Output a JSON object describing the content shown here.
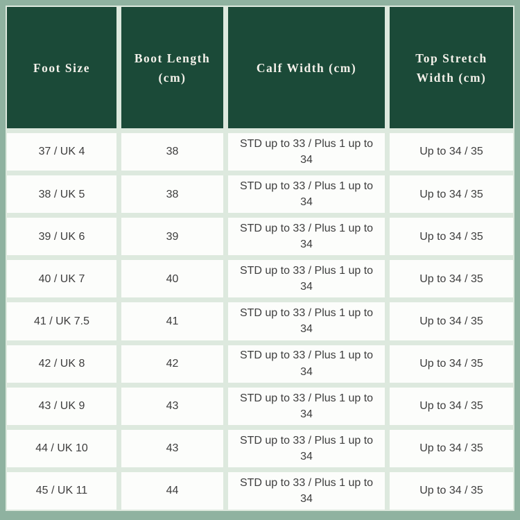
{
  "page": {
    "description": "Boot sizing chart table",
    "colors": {
      "page_background": "#8fb2a0",
      "header_background": "#1b4a38",
      "header_text": "#f4f1ea",
      "grid_line": "#dde9de",
      "cell_background": "#fcfdfb",
      "body_text": "#3d3d3d"
    }
  },
  "chart_data": {
    "type": "table",
    "title": "",
    "columns": [
      "Foot Size",
      "Boot Length (cm)",
      "Calf Width (cm)",
      "Top Stretch Width (cm)"
    ],
    "rows": [
      [
        "37 / UK 4",
        "38",
        "STD up to 33 / Plus 1 up to 34",
        "Up to 34 / 35"
      ],
      [
        "38 / UK 5",
        "38",
        "STD up to 33 / Plus 1 up to 34",
        "Up to 34 / 35"
      ],
      [
        "39 / UK 6",
        "39",
        "STD up to 33 / Plus 1 up to 34",
        "Up to 34 / 35"
      ],
      [
        "40 / UK 7",
        "40",
        "STD up to 33 / Plus 1 up to 34",
        "Up to 34 / 35"
      ],
      [
        "41 / UK 7.5",
        "41",
        "STD up to 33 / Plus 1 up to 34",
        "Up to 34 / 35"
      ],
      [
        "42 / UK 8",
        "42",
        "STD up to 33 / Plus 1 up to 34",
        "Up to 34 / 35"
      ],
      [
        "43 / UK 9",
        "43",
        "STD up to 33 / Plus 1 up to 34",
        "Up to 34 / 35"
      ],
      [
        "44 / UK 10",
        "43",
        "STD up to 33 / Plus 1 up to 34",
        "Up to 34 / 35"
      ],
      [
        "45 / UK 11",
        "44",
        "STD up to 33 / Plus 1 up to 34",
        "Up to 34 / 35"
      ]
    ]
  }
}
